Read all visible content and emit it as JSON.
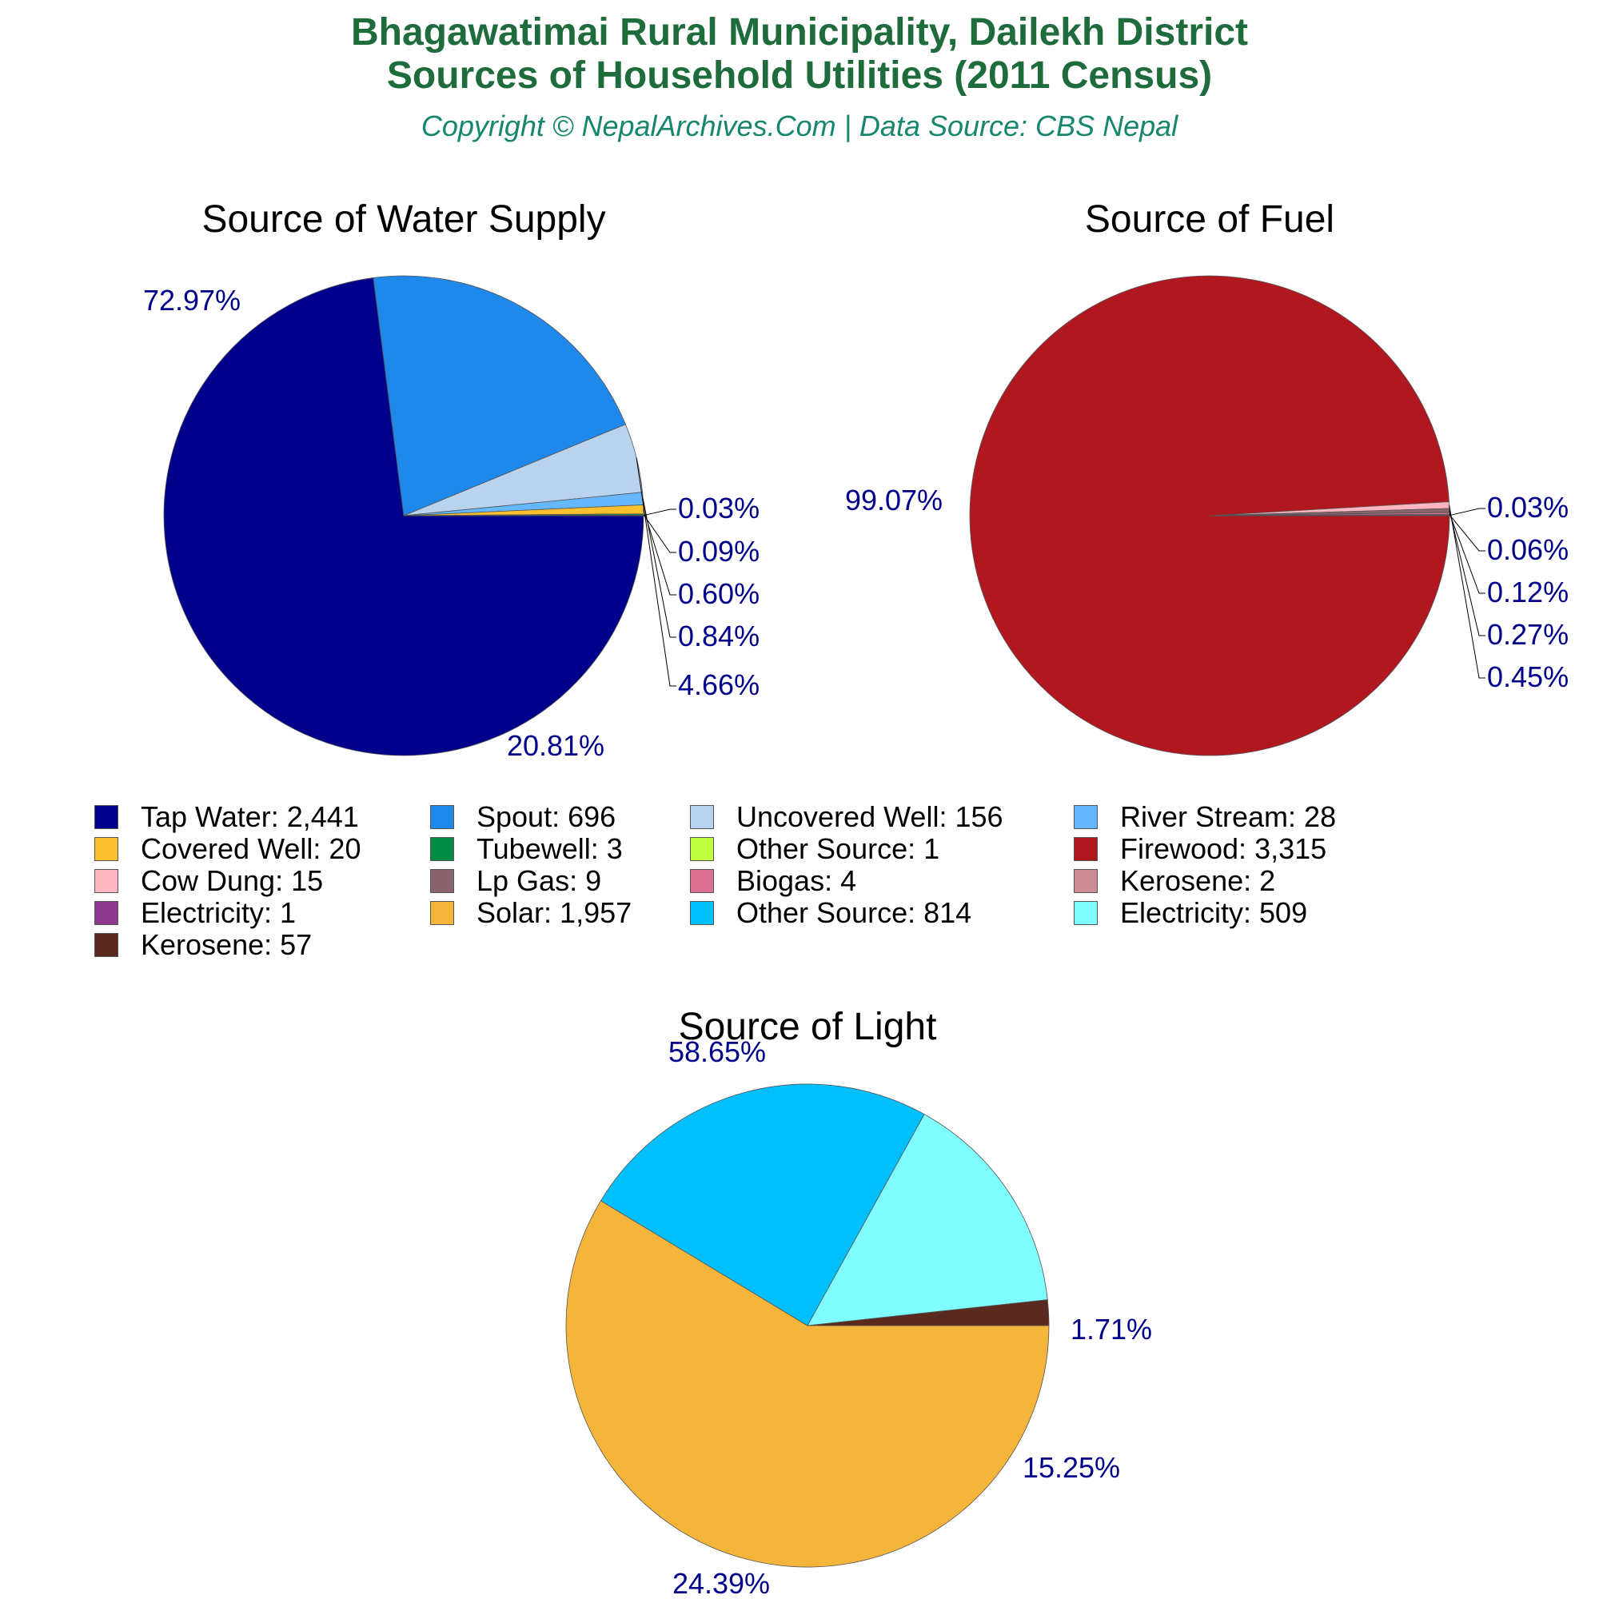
{
  "header": {
    "title_line1": "Bhagawatimai Rural Municipality, Dailekh District",
    "title_line2": "Sources of Household Utilities (2011 Census)",
    "subtitle": "Copyright © NepalArchives.Com | Data Source: CBS Nepal"
  },
  "chart_data": [
    {
      "type": "pie",
      "title": "Source of Water Supply",
      "slices": [
        {
          "label": "Tap Water",
          "value": 2441,
          "percent_label": "72.97%",
          "color": "#00008b"
        },
        {
          "label": "Spout",
          "value": 696,
          "percent_label": "20.81%",
          "color": "#1e88eb"
        },
        {
          "label": "Uncovered Well",
          "value": 156,
          "percent_label": "4.66%",
          "color": "#b9d3ee"
        },
        {
          "label": "River Stream",
          "value": 28,
          "percent_label": "0.84%",
          "color": "#63b8ff"
        },
        {
          "label": "Covered Well",
          "value": 20,
          "percent_label": "0.60%",
          "color": "#fbc02d"
        },
        {
          "label": "Tubewell",
          "value": 3,
          "percent_label": "0.09%",
          "color": "#008b45"
        },
        {
          "label": "Other Source",
          "value": 1,
          "percent_label": "0.03%",
          "color": "#c0ff3e"
        }
      ]
    },
    {
      "type": "pie",
      "title": "Source of Fuel",
      "slices": [
        {
          "label": "Firewood",
          "value": 3315,
          "percent_label": "99.07%",
          "color": "#b0171f"
        },
        {
          "label": "Cow Dung",
          "value": 15,
          "percent_label": "0.45%",
          "color": "#ffb6c1"
        },
        {
          "label": "Lp Gas",
          "value": 9,
          "percent_label": "0.27%",
          "color": "#8b636c"
        },
        {
          "label": "Biogas",
          "value": 4,
          "percent_label": "0.12%",
          "color": "#db7093"
        },
        {
          "label": "Kerosene",
          "value": 2,
          "percent_label": "0.06%",
          "color": "#cd8c95"
        },
        {
          "label": "Electricity",
          "value": 1,
          "percent_label": "0.03%",
          "color": "#8e388e"
        }
      ]
    },
    {
      "type": "pie",
      "title": "Source of Light",
      "slices": [
        {
          "label": "Solar",
          "value": 1957,
          "percent_label": "58.65%",
          "color": "#f5b43a"
        },
        {
          "label": "Other Source",
          "value": 814,
          "percent_label": "24.39%",
          "color": "#00bfff"
        },
        {
          "label": "Electricity",
          "value": 509,
          "percent_label": "15.25%",
          "color": "#7fffff"
        },
        {
          "label": "Kerosene",
          "value": 57,
          "percent_label": "1.71%",
          "color": "#5a2a1e"
        }
      ]
    }
  ],
  "legend": [
    {
      "label": "Tap Water: 2,441",
      "color": "#00008b"
    },
    {
      "label": "Spout: 696",
      "color": "#1e88eb"
    },
    {
      "label": "Uncovered Well: 156",
      "color": "#b9d3ee"
    },
    {
      "label": "River Stream: 28",
      "color": "#63b8ff"
    },
    {
      "label": "Covered Well: 20",
      "color": "#fbc02d"
    },
    {
      "label": "Tubewell: 3",
      "color": "#008b45"
    },
    {
      "label": "Other Source: 1",
      "color": "#c0ff3e"
    },
    {
      "label": "Firewood: 3,315",
      "color": "#b0171f"
    },
    {
      "label": "Cow Dung: 15",
      "color": "#ffb6c1"
    },
    {
      "label": "Lp Gas: 9",
      "color": "#8b636c"
    },
    {
      "label": "Biogas: 4",
      "color": "#db7093"
    },
    {
      "label": "Kerosene: 2",
      "color": "#cd8c95"
    },
    {
      "label": "Electricity: 1",
      "color": "#8e388e"
    },
    {
      "label": "Solar: 1,957",
      "color": "#f5b43a"
    },
    {
      "label": "Other Source: 814",
      "color": "#00bfff"
    },
    {
      "label": "Electricity: 509",
      "color": "#7fffff"
    },
    {
      "label": "Kerosene: 57",
      "color": "#5a2a1e"
    }
  ],
  "colors": {
    "title": "#1e6b3c",
    "subtitle": "#16866e",
    "percent_label": "#00008b"
  }
}
